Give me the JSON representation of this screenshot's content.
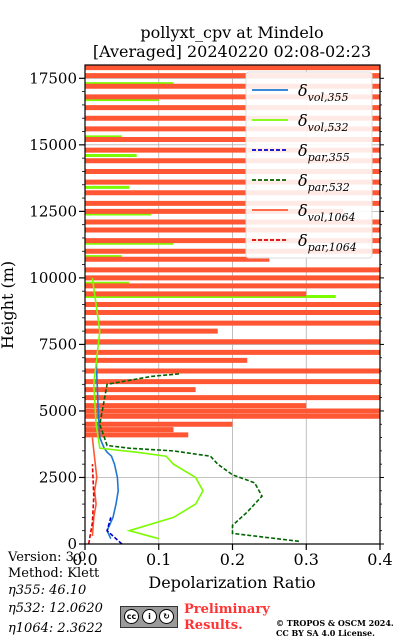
{
  "figure": {
    "title_line1": "pollyxt_cpv at Mindelo",
    "title_line2": "[Averaged] 20240220 02:08-02:23"
  },
  "chart_data": {
    "type": "line",
    "xlabel": "Depolarization Ratio",
    "ylabel": "Height (m)",
    "xlim": [
      0.0,
      0.4
    ],
    "ylim": [
      0,
      18000
    ],
    "xticks": [
      "0.0",
      "0.1",
      "0.2",
      "0.3",
      "0.4"
    ],
    "yticks": [
      "0",
      "2500",
      "5000",
      "7500",
      "10000",
      "12500",
      "15000",
      "17500"
    ],
    "grid": true,
    "legend_position": "top-right",
    "series": [
      {
        "name": "δvol,355",
        "color": "#1f77d4",
        "style": "solid",
        "points": [
          [
            0.035,
            200
          ],
          [
            0.03,
            500
          ],
          [
            0.038,
            1000
          ],
          [
            0.042,
            1500
          ],
          [
            0.045,
            2000
          ],
          [
            0.044,
            2500
          ],
          [
            0.04,
            3000
          ],
          [
            0.036,
            3300
          ],
          [
            0.03,
            3450
          ],
          [
            0.026,
            3600
          ],
          [
            0.02,
            4000
          ],
          [
            0.018,
            5000
          ],
          [
            0.015,
            7000
          ]
        ]
      },
      {
        "name": "δvol,532",
        "color": "#7cfc00",
        "style": "solid",
        "points": [
          [
            0.1,
            200
          ],
          [
            0.06,
            500
          ],
          [
            0.12,
            1000
          ],
          [
            0.15,
            1500
          ],
          [
            0.16,
            2000
          ],
          [
            0.15,
            2500
          ],
          [
            0.12,
            3000
          ],
          [
            0.11,
            3300
          ],
          [
            0.07,
            3450
          ],
          [
            0.02,
            3600
          ],
          [
            0.015,
            4500
          ],
          [
            0.012,
            6000
          ],
          [
            0.02,
            8000
          ],
          [
            0.01,
            10000
          ]
        ]
      },
      {
        "name": "δpar,355",
        "color": "#0000cc",
        "style": "dashed",
        "points": [
          [
            0.05,
            0
          ],
          [
            0.03,
            500
          ],
          [
            0.035,
            1000
          ]
        ]
      },
      {
        "name": "δpar,532",
        "color": "#006400",
        "style": "dashed",
        "points": [
          [
            0.29,
            100
          ],
          [
            0.2,
            400
          ],
          [
            0.2,
            700
          ],
          [
            0.22,
            1200
          ],
          [
            0.24,
            1800
          ],
          [
            0.23,
            2300
          ],
          [
            0.2,
            2600
          ],
          [
            0.18,
            3000
          ],
          [
            0.17,
            3300
          ],
          [
            0.12,
            3500
          ],
          [
            0.06,
            3600
          ],
          [
            0.03,
            3700
          ],
          [
            0.02,
            4500
          ],
          [
            0.03,
            6000
          ],
          [
            0.09,
            6300
          ],
          [
            0.13,
            6400
          ]
        ]
      },
      {
        "name": "δvol,1064",
        "color": "#ff5733",
        "style": "solid",
        "points": [
          [
            0.01,
            300
          ],
          [
            0.012,
            1000
          ],
          [
            0.015,
            1500
          ],
          [
            0.013,
            2000
          ],
          [
            0.016,
            2500
          ],
          [
            0.014,
            3000
          ],
          [
            0.012,
            3500
          ],
          [
            0.01,
            4000
          ]
        ]
      },
      {
        "name": "δpar,1064",
        "color": "#dd0000",
        "style": "dashed",
        "points": [
          [
            0.005,
            0
          ],
          [
            0.01,
            800
          ],
          [
            0.012,
            1800
          ],
          [
            0.01,
            3000
          ]
        ]
      }
    ],
    "noise_bars_1064_heights": [
      4100,
      4300,
      4500,
      4800,
      5000,
      5200,
      5500,
      5800,
      6100,
      6500,
      6900,
      7200,
      7600,
      8000,
      8300,
      8700,
      9000,
      9400,
      9700,
      10000,
      10300,
      10700,
      11000,
      11400,
      11800,
      12100,
      12500,
      12800,
      13200,
      13600,
      14000,
      14400,
      14800,
      15200,
      15600,
      16000,
      16400,
      16800,
      17200,
      17600,
      17900
    ],
    "noise_bars_1064_ends": [
      0.14,
      0.12,
      0.2,
      0.4,
      0.4,
      0.3,
      0.4,
      0.15,
      0.4,
      0.4,
      0.22,
      0.4,
      0.4,
      0.18,
      0.4,
      0.4,
      0.4,
      0.3,
      0.4,
      0.4,
      0.4,
      0.25,
      0.4,
      0.4,
      0.4,
      0.4,
      0.35,
      0.4,
      0.4,
      0.4,
      0.4,
      0.4,
      0.4,
      0.4,
      0.4,
      0.4,
      0.4,
      0.4,
      0.4,
      0.4,
      0.4
    ],
    "noise_bars_532_heights": [
      8700,
      9300,
      9800,
      10300,
      10800,
      11300,
      11800,
      12400,
      12800,
      13400,
      14000,
      14600,
      15300,
      16000,
      16700,
      17300
    ],
    "noise_bars_532_ends": [
      0.05,
      0.34,
      0.06,
      0.14,
      0.05,
      0.12,
      0.06,
      0.09,
      0.05,
      0.06,
      0.04,
      0.07,
      0.05,
      0.08,
      0.1,
      0.12
    ]
  },
  "footer": {
    "version": "Version: 3.0",
    "method": "Method: Klett",
    "eta355": "η355:  46.10",
    "eta532": "η532: 12.0620",
    "eta1064": "η1064: 2.3622",
    "preliminary1": "Preliminary",
    "preliminary2": "Results.",
    "copyright1": "© TROPOS & OSCM 2024.",
    "copyright2": "CC BY SA 4.0 License.",
    "cc_icons": [
      "cc-icon",
      "by-icon",
      "sa-icon"
    ],
    "preliminary_color": "#ff3333"
  }
}
